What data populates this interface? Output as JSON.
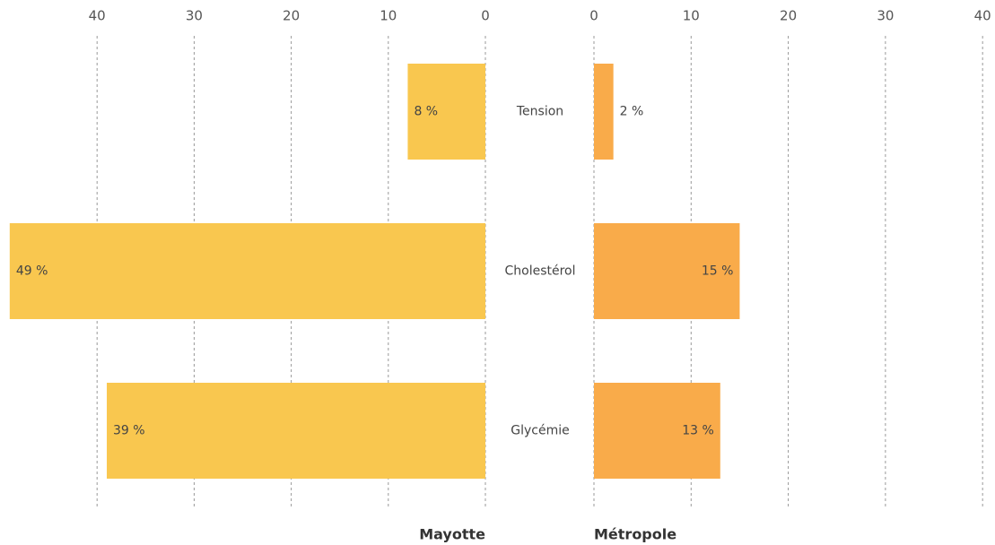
{
  "chart_data": {
    "type": "bar",
    "orientation": "horizontal",
    "categories": [
      "Tension",
      "Cholestérol",
      "Glycémie"
    ],
    "grid": true,
    "series": [
      {
        "name": "Mayotte",
        "color": "#f9c74f",
        "values": [
          8,
          49,
          39
        ],
        "value_labels": [
          "8 %",
          "49 %",
          "39 %"
        ],
        "xlim": [
          0,
          50
        ],
        "xticks": [
          0,
          10,
          20,
          30,
          40
        ]
      },
      {
        "name": "Métropole",
        "color": "#f9ab4a",
        "values": [
          2,
          15,
          13
        ],
        "value_labels": [
          "2 %",
          "15 %",
          "13 %"
        ],
        "xlim": [
          0,
          41
        ],
        "xticks": [
          0,
          10,
          20,
          30,
          40
        ]
      }
    ]
  }
}
